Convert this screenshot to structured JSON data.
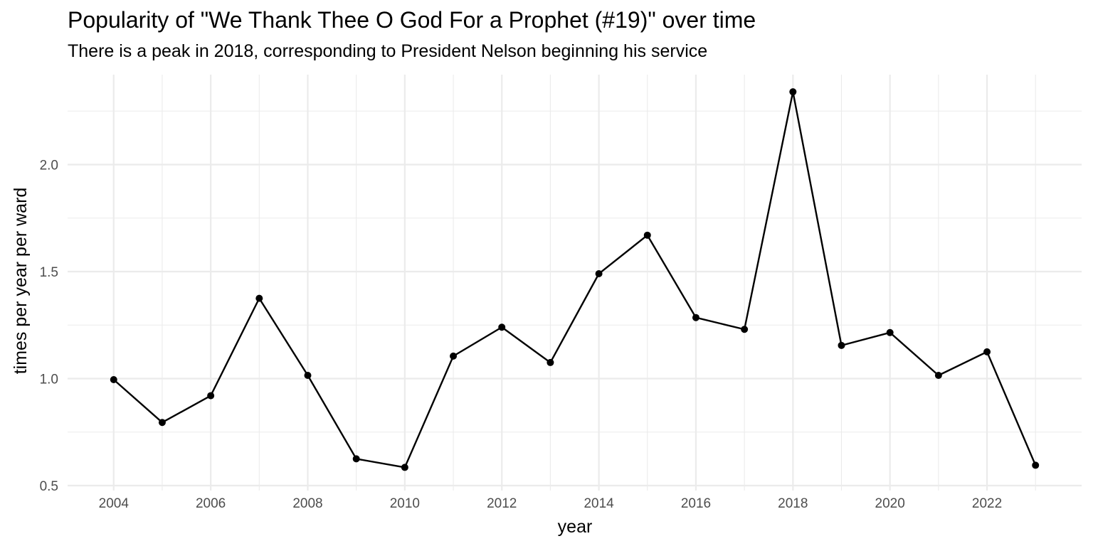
{
  "chart_data": {
    "type": "line",
    "title": "Popularity of \"We Thank Thee O God For a Prophet (#19)\" over time",
    "subtitle": "There is a peak in 2018, corresponding to President Nelson beginning his service",
    "xlabel": "year",
    "ylabel": "times per year per ward",
    "x": [
      2004,
      2005,
      2006,
      2007,
      2008,
      2009,
      2010,
      2011,
      2012,
      2013,
      2014,
      2015,
      2016,
      2017,
      2018,
      2019,
      2020,
      2021,
      2022,
      2023
    ],
    "series": [
      {
        "values": [
          0.995,
          0.795,
          0.92,
          1.375,
          1.015,
          0.625,
          0.585,
          1.105,
          1.24,
          1.075,
          1.49,
          1.67,
          1.285,
          1.23,
          2.34,
          1.155,
          1.215,
          1.015,
          1.125,
          0.595
        ]
      }
    ],
    "xlim": [
      2003.05,
      2023.95
    ],
    "ylim": [
      0.5,
      2.5
    ],
    "x_ticks": [
      2004,
      2006,
      2008,
      2010,
      2012,
      2014,
      2016,
      2018,
      2020,
      2022
    ],
    "y_ticks": [
      0.5,
      1.0,
      1.5,
      2.0
    ],
    "y_tick_labels": [
      "0.5",
      "1.0",
      "1.5",
      "2.0"
    ],
    "grid": true,
    "line_color": "#000000",
    "point_color": "#000000",
    "grid_color": "#ebebeb"
  }
}
